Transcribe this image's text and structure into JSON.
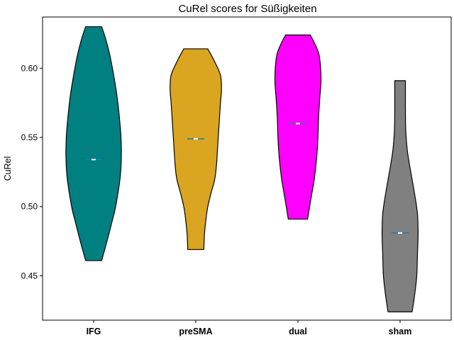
{
  "chart_data": {
    "type": "violin",
    "title": "CuRel scores for Süßigkeiten",
    "xlabel": "",
    "ylabel": "CuRel",
    "ylim": [
      0.418,
      0.637
    ],
    "yticks": [
      "0.45",
      "0.50",
      "0.55",
      "0.60"
    ],
    "categories": [
      "IFG",
      "preSMA",
      "dual",
      "sham"
    ],
    "violins": [
      {
        "name": "IFG",
        "color": "#008080",
        "min": 0.461,
        "max": 0.63,
        "median": 0.534,
        "profile": [
          [
            0.461,
            0.24
          ],
          [
            0.475,
            0.4
          ],
          [
            0.49,
            0.56
          ],
          [
            0.5,
            0.66
          ],
          [
            0.52,
            0.79
          ],
          [
            0.535,
            0.83
          ],
          [
            0.55,
            0.82
          ],
          [
            0.565,
            0.77
          ],
          [
            0.58,
            0.7
          ],
          [
            0.595,
            0.6
          ],
          [
            0.61,
            0.48
          ],
          [
            0.622,
            0.35
          ],
          [
            0.63,
            0.24
          ]
        ]
      },
      {
        "name": "preSMA",
        "color": "#DAA520",
        "min": 0.469,
        "max": 0.614,
        "median": 0.549,
        "profile": [
          [
            0.469,
            0.24
          ],
          [
            0.48,
            0.26
          ],
          [
            0.49,
            0.3
          ],
          [
            0.5,
            0.36
          ],
          [
            0.51,
            0.46
          ],
          [
            0.52,
            0.57
          ],
          [
            0.53,
            0.62
          ],
          [
            0.545,
            0.66
          ],
          [
            0.56,
            0.7
          ],
          [
            0.575,
            0.74
          ],
          [
            0.585,
            0.77
          ],
          [
            0.595,
            0.74
          ],
          [
            0.605,
            0.56
          ],
          [
            0.614,
            0.36
          ]
        ]
      },
      {
        "name": "dual",
        "color": "#FF00FF",
        "min": 0.491,
        "max": 0.624,
        "median": 0.56,
        "profile": [
          [
            0.491,
            0.29
          ],
          [
            0.5,
            0.35
          ],
          [
            0.51,
            0.42
          ],
          [
            0.52,
            0.49
          ],
          [
            0.535,
            0.56
          ],
          [
            0.55,
            0.6
          ],
          [
            0.565,
            0.62
          ],
          [
            0.58,
            0.66
          ],
          [
            0.59,
            0.69
          ],
          [
            0.6,
            0.68
          ],
          [
            0.61,
            0.63
          ],
          [
            0.618,
            0.5
          ],
          [
            0.624,
            0.37
          ]
        ]
      },
      {
        "name": "sham",
        "color": "#808080",
        "min": 0.424,
        "max": 0.591,
        "median": 0.481,
        "profile": [
          [
            0.424,
            0.36
          ],
          [
            0.435,
            0.43
          ],
          [
            0.45,
            0.5
          ],
          [
            0.465,
            0.52
          ],
          [
            0.48,
            0.54
          ],
          [
            0.495,
            0.52
          ],
          [
            0.51,
            0.43
          ],
          [
            0.525,
            0.32
          ],
          [
            0.54,
            0.22
          ],
          [
            0.555,
            0.17
          ],
          [
            0.57,
            0.16
          ],
          [
            0.58,
            0.16
          ],
          [
            0.591,
            0.16
          ]
        ]
      }
    ],
    "median_color": "#1f77b4",
    "grid": false,
    "legend": "none"
  }
}
